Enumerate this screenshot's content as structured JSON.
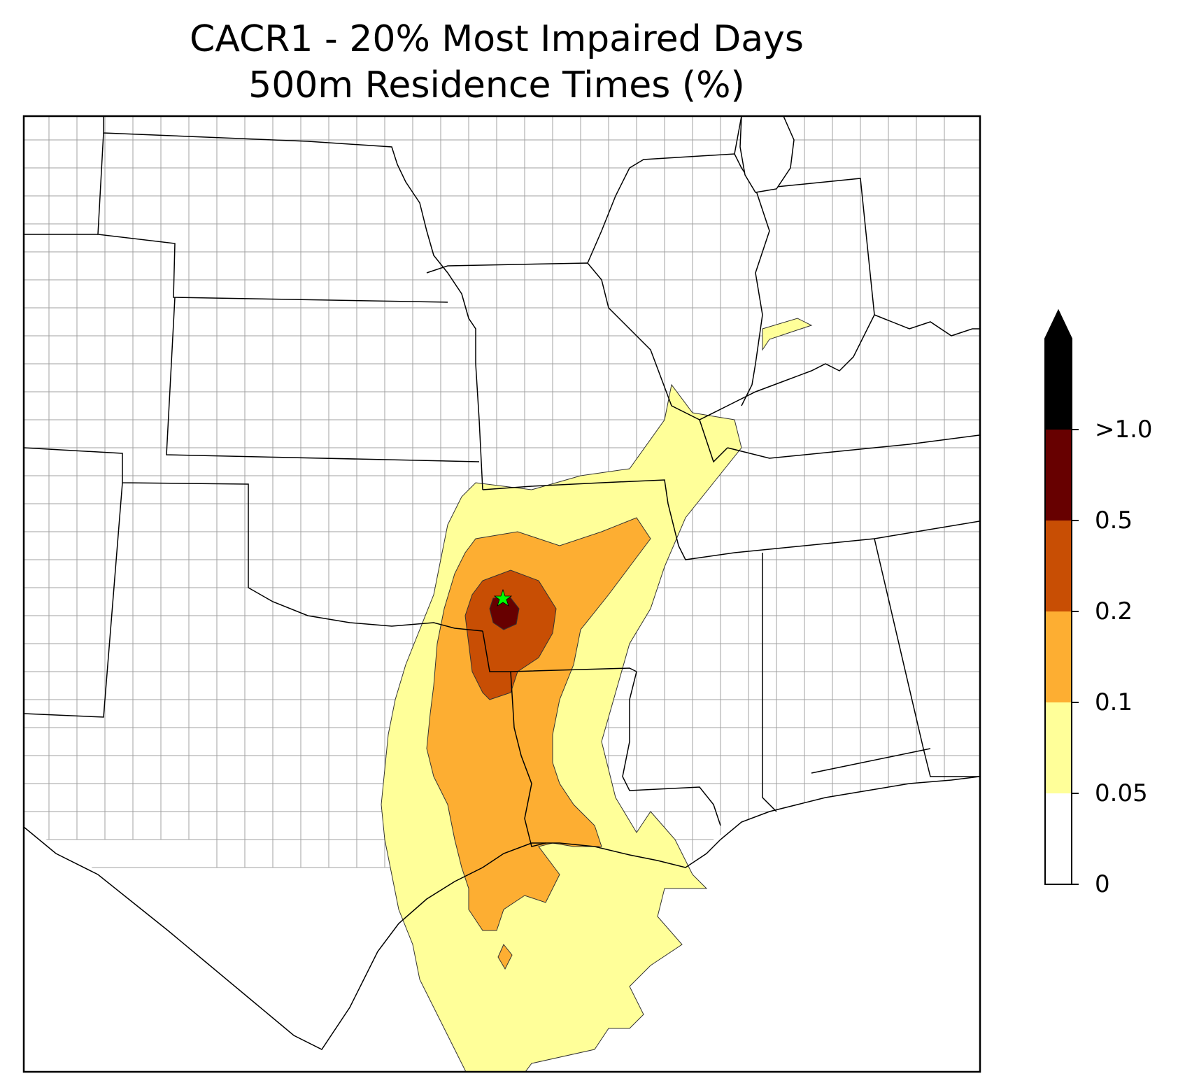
{
  "title": {
    "line1": "CACR1 - 20% Most Impaired Days",
    "line2": "500m Residence Times (%)"
  },
  "colorbar": {
    "extend": "max",
    "bins": [
      {
        "from": 0,
        "to": 0.05,
        "color": "#ffffff"
      },
      {
        "from": 0.05,
        "to": 0.1,
        "color": "#ffff99"
      },
      {
        "from": 0.1,
        "to": 0.2,
        "color": "#fdae32"
      },
      {
        "from": 0.2,
        "to": 0.5,
        "color": "#c84e04"
      },
      {
        "from": 0.5,
        "to": 1.0,
        "color": "#670000"
      },
      {
        "from": 1.0,
        "to": null,
        "color": "#000000"
      }
    ],
    "tick_labels": [
      "0",
      "0.05",
      "0.1",
      "0.2",
      "0.5",
      ">1.0"
    ]
  },
  "colors": {
    "state_lines": "#000000",
    "county_lines": "#a0a0a0",
    "site_marker": "#00ff00"
  },
  "site_marker": "star-icon"
}
